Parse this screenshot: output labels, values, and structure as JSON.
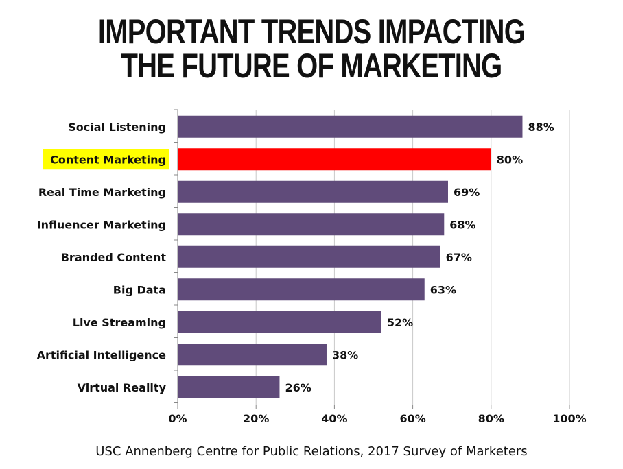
{
  "title_lines": [
    "IMPORTANT TRENDS IMPACTING",
    "THE FUTURE OF MARKETING"
  ],
  "source": "USC Annenberg Centre for Public Relations, 2017 Survey of Marketers",
  "colors": {
    "bar": "#604b7a",
    "highlight_bar": "#ff0000",
    "highlight_label_bg": "#ffff00",
    "grid": "#c8c8c8",
    "text": "#111111"
  },
  "chart_data": {
    "type": "bar",
    "orientation": "horizontal",
    "categories": [
      "Social Listening",
      "Content Marketing",
      "Real Time Marketing",
      "Influencer Marketing",
      "Branded Content",
      "Big Data",
      "Live Streaming",
      "Artificial Intelligence",
      "Virtual Reality"
    ],
    "values": [
      88,
      80,
      69,
      68,
      67,
      63,
      52,
      38,
      26
    ],
    "data_labels": [
      "88%",
      "80%",
      "69%",
      "68%",
      "67%",
      "63%",
      "52%",
      "38%",
      "26%"
    ],
    "highlighted_category": "Content Marketing",
    "xlim": [
      0,
      100
    ],
    "xticks": [
      0,
      20,
      40,
      60,
      80,
      100
    ],
    "xtick_labels": [
      "0%",
      "20%",
      "40%",
      "60%",
      "80%",
      "100%"
    ],
    "grid": true
  }
}
